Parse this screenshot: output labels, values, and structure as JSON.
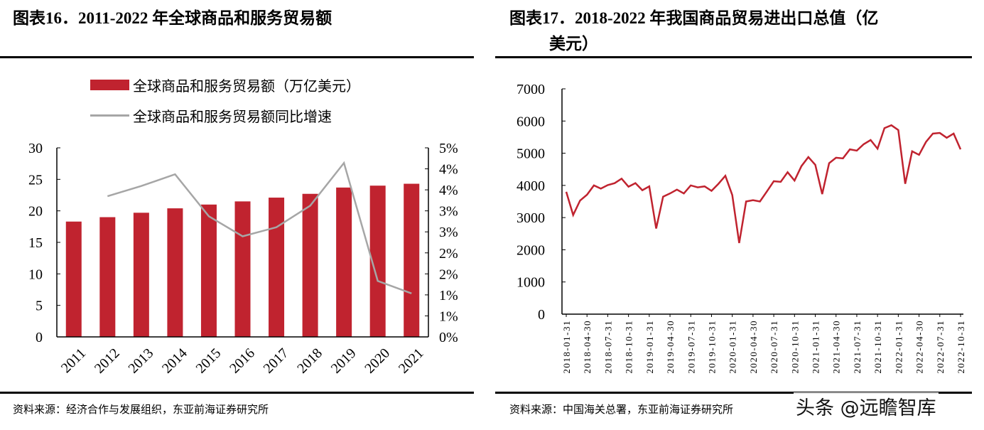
{
  "left": {
    "title": "图表16．2011-2022 年全球商品和服务贸易额",
    "legend": {
      "bar": "全球商品和服务贸易额（万亿美元）",
      "line": "全球商品和服务贸易额同比增速"
    },
    "source": "资料来源：经济合作与发展组织，东亚前海证券研究所"
  },
  "right": {
    "title_line1": "图表17．2018-2022 年我国商品贸易进出口总值（亿",
    "title_line2": "美元）",
    "source": "资料来源：中国海关总署，东亚前海证券研究所"
  },
  "watermark": "头条 @远瞻智库",
  "colors": {
    "bar": "#c0232f",
    "growth_line": "#a6a6a6",
    "trade_line": "#c0232f"
  },
  "chart_data": [
    {
      "type": "bar+line",
      "categories": [
        "2011",
        "2012",
        "2013",
        "2014",
        "2015",
        "2016",
        "2017",
        "2018",
        "2019",
        "2020",
        "2021"
      ],
      "series": [
        {
          "name": "全球商品和服务贸易额（万亿美元）",
          "type": "bar",
          "axis": "left",
          "values": [
            18.3,
            19.0,
            19.7,
            20.4,
            21.0,
            21.5,
            22.1,
            22.7,
            23.7,
            24.0,
            24.3
          ]
        },
        {
          "name": "全球商品和服务贸易额同比增速",
          "type": "line",
          "axis": "right",
          "values": [
            null,
            3.72,
            3.99,
            4.3,
            3.19,
            2.66,
            2.9,
            3.47,
            4.6,
            1.48,
            1.15
          ]
        }
      ],
      "ylim_left": [
        0,
        30
      ],
      "yticks_left": [
        "0",
        "5",
        "10",
        "15",
        "20",
        "25",
        "30"
      ],
      "ylim_right": [
        0,
        5
      ],
      "yticks_right": [
        "0%",
        "1%",
        "1%",
        "2%",
        "2%",
        "3%",
        "3%",
        "4%",
        "4%",
        "5%"
      ],
      "legend": "top",
      "grid": false
    },
    {
      "type": "line",
      "x_start": "2018-01-31",
      "x_end": "2022-10-31",
      "xtick_labels": [
        "2018-01-31",
        "2018-04-30",
        "2018-07-31",
        "2018-10-31",
        "2019-01-31",
        "2019-04-30",
        "2019-07-31",
        "2019-10-31",
        "2020-01-31",
        "2020-04-30",
        "2020-07-31",
        "2020-10-31",
        "2021-01-31",
        "2021-04-30",
        "2021-07-31",
        "2021-10-31",
        "2022-01-31",
        "2022-04-30",
        "2022-07-31",
        "2022-10-31"
      ],
      "values": [
        3800,
        3080,
        3530,
        3710,
        4000,
        3900,
        4010,
        4070,
        4210,
        3960,
        4070,
        3850,
        3970,
        2660,
        3650,
        3750,
        3870,
        3750,
        4000,
        3940,
        3970,
        3830,
        4050,
        4300,
        3700,
        2210,
        3500,
        3540,
        3500,
        3810,
        4130,
        4110,
        4410,
        4150,
        4600,
        4880,
        4640,
        3730,
        4690,
        4860,
        4840,
        5120,
        5080,
        5280,
        5410,
        5140,
        5780,
        5870,
        5720,
        4050,
        5060,
        4950,
        5350,
        5610,
        5630,
        5480,
        5610,
        5120
      ],
      "ylim": [
        0,
        7000
      ],
      "yticks": [
        "0",
        "1000",
        "2000",
        "3000",
        "4000",
        "5000",
        "6000",
        "7000"
      ],
      "grid": false
    }
  ]
}
